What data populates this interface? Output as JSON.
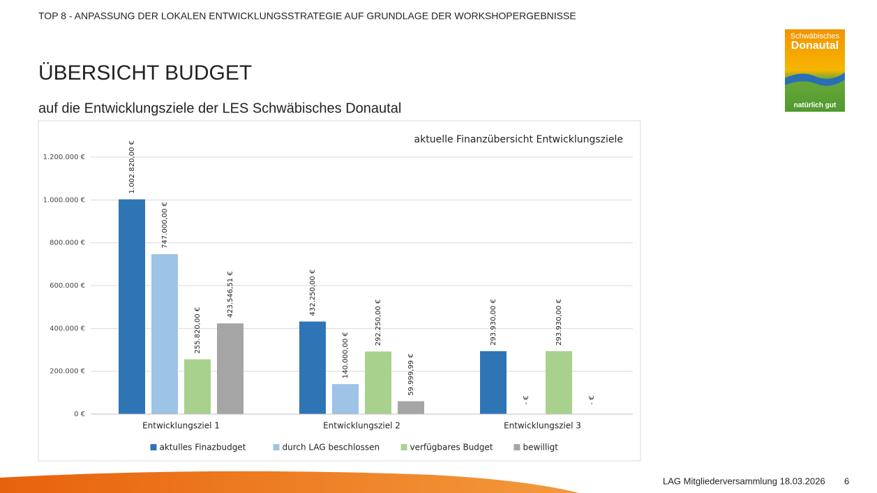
{
  "header": "TOP 8 - ANPASSUNG DER LOKALEN ENTWICKLUNGSSTRATEGIE AUF GRUNDLAGE DER WORKSHOPERGEBNISSE",
  "title": "ÜBERSICHT BUDGET",
  "subtitle": "auf die Entwicklungsziele der LES Schwäbisches Donautal",
  "logo": {
    "line1": "Schwäbisches",
    "line2": "Donautal",
    "slogan": "natürlich gut"
  },
  "footer": {
    "text": "LAG Mitgliederversammlung 18.03.2026",
    "page": "6"
  },
  "chart_data": {
    "type": "bar",
    "title": "aktuelle Finanzübersicht Entwicklungsziele",
    "categories": [
      "Entwicklungsziel 1",
      "Entwicklungsziel 2",
      "Entwicklungsziel 3"
    ],
    "series": [
      {
        "name": "aktulles Finazbudget",
        "color": "#2e75b6",
        "values": [
          1002820,
          432250,
          293930
        ],
        "value_labels": [
          "1.002.820,00 €",
          "432.250,00 €",
          "293.930,00 €"
        ]
      },
      {
        "name": "durch LAG beschlossen",
        "color": "#9dc3e6",
        "values": [
          747000,
          140000,
          0
        ],
        "value_labels": [
          "747.000,00 €",
          "140.000,00 €",
          "- €"
        ]
      },
      {
        "name": "verfügbares Budget",
        "color": "#a9d18e",
        "values": [
          255820,
          292250,
          293930
        ],
        "value_labels": [
          "255.820,00 €",
          "292.250,00 €",
          "293.930,00 €"
        ]
      },
      {
        "name": "bewilligt",
        "color": "#a5a5a5",
        "values": [
          423546.51,
          59999.99,
          0
        ],
        "value_labels": [
          "423.546,51 €",
          "59.999,99 €",
          "- €"
        ]
      }
    ],
    "ylim": [
      0,
      1200000
    ],
    "yticks": [
      {
        "value": 0,
        "label": "0 €"
      },
      {
        "value": 200000,
        "label": "200.000 €"
      },
      {
        "value": 400000,
        "label": "400.000 €"
      },
      {
        "value": 600000,
        "label": "600.000 €"
      },
      {
        "value": 800000,
        "label": "800.000 €"
      },
      {
        "value": 1000000,
        "label": "1.000.000 €"
      },
      {
        "value": 1200000,
        "label": "1.200.000 €"
      }
    ],
    "grid": true,
    "legend": "bottom"
  }
}
